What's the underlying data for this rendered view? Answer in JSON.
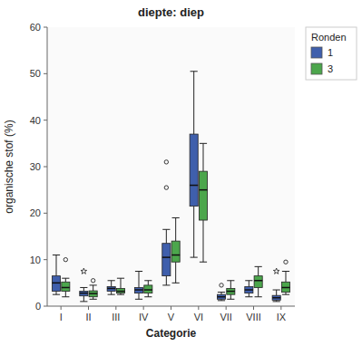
{
  "chart_data": {
    "type": "box",
    "title": "diepte: diep",
    "x_label": "Categorie",
    "y_label": "organische stof (%)",
    "legend_title": "Ronden",
    "legend": "right",
    "grid": false,
    "categories": [
      "I",
      "II",
      "III",
      "IV",
      "V",
      "VI",
      "VII",
      "VIII",
      "IX"
    ],
    "ylim": [
      0,
      60
    ],
    "yticks": [
      0,
      10,
      20,
      30,
      40,
      50,
      60
    ],
    "series": [
      {
        "name": "1",
        "color": "#3f5fac",
        "values": [
          {
            "whislo": 2.5,
            "q1": 3.2,
            "med": 5.0,
            "q3": 6.5,
            "whishi": 11.0,
            "fliers": []
          },
          {
            "whislo": 1.0,
            "q1": 2.2,
            "med": 2.8,
            "q3": 3.2,
            "whishi": 4.0,
            "fliers": [],
            "stars": [
              7.5
            ]
          },
          {
            "whislo": 2.5,
            "q1": 3.2,
            "med": 3.8,
            "q3": 4.2,
            "whishi": 5.5,
            "fliers": []
          },
          {
            "whislo": 1.5,
            "q1": 2.8,
            "med": 3.5,
            "q3": 4.0,
            "whishi": 7.5,
            "fliers": []
          },
          {
            "whislo": 4.5,
            "q1": 6.5,
            "med": 10.5,
            "q3": 13.5,
            "whishi": 16.5,
            "fliers": [
              25.5,
              31.0
            ]
          },
          {
            "whislo": 10.5,
            "q1": 21.5,
            "med": 26.0,
            "q3": 37.0,
            "whishi": 50.5,
            "fliers": []
          },
          {
            "whislo": 1.2,
            "q1": 1.5,
            "med": 2.0,
            "q3": 2.5,
            "whishi": 3.0,
            "fliers": [
              4.5
            ]
          },
          {
            "whislo": 2.0,
            "q1": 2.8,
            "med": 3.5,
            "q3": 4.2,
            "whishi": 5.5,
            "fliers": []
          },
          {
            "whislo": 1.0,
            "q1": 1.3,
            "med": 1.8,
            "q3": 2.3,
            "whishi": 3.5,
            "fliers": [],
            "stars": [
              7.5
            ]
          }
        ]
      },
      {
        "name": "3",
        "color": "#4ca64c",
        "values": [
          {
            "whislo": 2.0,
            "q1": 3.2,
            "med": 4.0,
            "q3": 5.2,
            "whishi": 6.0,
            "fliers": [
              10.0
            ]
          },
          {
            "whislo": 1.5,
            "q1": 2.0,
            "med": 2.7,
            "q3": 3.3,
            "whishi": 4.5,
            "fliers": [
              5.5
            ]
          },
          {
            "whislo": 2.5,
            "q1": 2.8,
            "med": 3.2,
            "q3": 3.8,
            "whishi": 6.0,
            "fliers": []
          },
          {
            "whislo": 2.0,
            "q1": 2.8,
            "med": 3.5,
            "q3": 4.5,
            "whishi": 5.5,
            "fliers": []
          },
          {
            "whislo": 5.0,
            "q1": 9.5,
            "med": 11.0,
            "q3": 14.0,
            "whishi": 19.0,
            "fliers": []
          },
          {
            "whislo": 9.5,
            "q1": 18.5,
            "med": 25.0,
            "q3": 29.0,
            "whishi": 35.0,
            "fliers": []
          },
          {
            "whislo": 1.5,
            "q1": 2.5,
            "med": 3.2,
            "q3": 3.8,
            "whishi": 5.5,
            "fliers": []
          },
          {
            "whislo": 2.0,
            "q1": 4.0,
            "med": 5.5,
            "q3": 6.5,
            "whishi": 8.5,
            "fliers": []
          },
          {
            "whislo": 2.5,
            "q1": 3.0,
            "med": 4.0,
            "q3": 5.2,
            "whishi": 7.5,
            "fliers": [
              9.5
            ]
          }
        ]
      }
    ]
  }
}
